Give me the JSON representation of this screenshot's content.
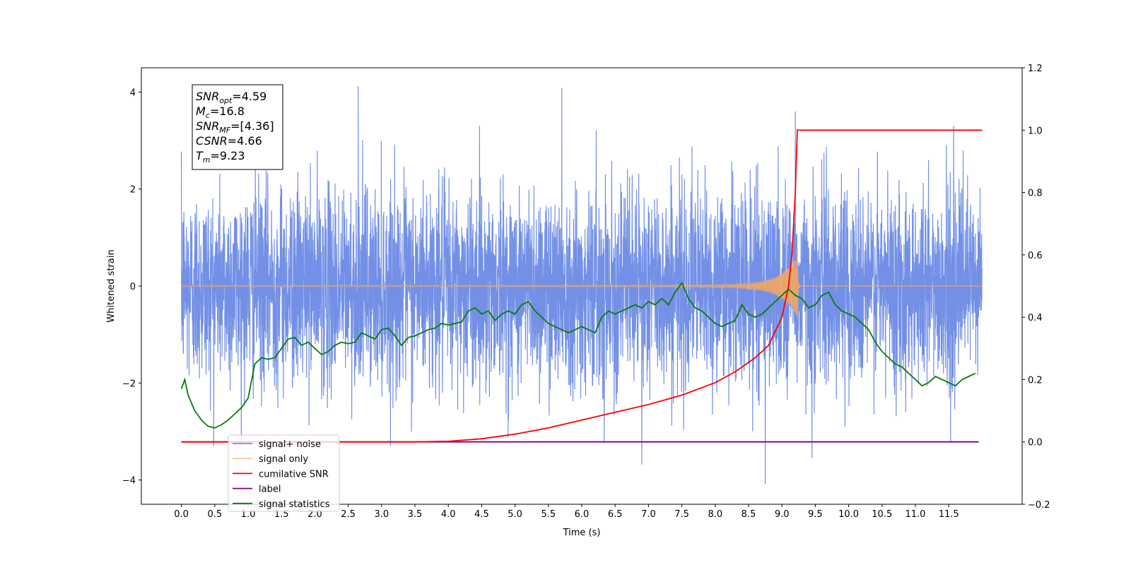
{
  "chart_data": {
    "type": "line",
    "xlabel": "Time (s)",
    "ylabel": "Whitened strain",
    "xlim": [
      -0.6,
      12.6
    ],
    "ylim": [
      -4.5,
      4.5
    ],
    "y2lim": [
      -0.2,
      1.2
    ],
    "xticks": [
      "0.0",
      "0.5",
      "1.0",
      "1.5",
      "2.0",
      "2.5",
      "3.0",
      "3.5",
      "4.0",
      "4.5",
      "5.0",
      "5.5",
      "6.0",
      "6.5",
      "7.0",
      "7.5",
      "8.0",
      "8.5",
      "9.0",
      "9.5",
      "10.0",
      "10.5",
      "11.0",
      "11.5"
    ],
    "yticks": [
      "−4",
      "−2",
      "0",
      "2",
      "4"
    ],
    "y2ticks": [
      "−0.2",
      "0.0",
      "0.2",
      "0.4",
      "0.6",
      "0.8",
      "1.0",
      "1.2"
    ],
    "grid": false,
    "legend_position": "lower-left",
    "colors": {
      "noise": "#7390e6",
      "signal": "#f2a960",
      "cumsnr": "#ff0000",
      "label": "#800080",
      "stats": "#0a7a0a"
    },
    "info_box": {
      "lines": [
        {
          "main": "SNR",
          "sub": "opt",
          "rest": "=4.59"
        },
        {
          "main": "M",
          "sub": "c",
          "rest": "=16.8"
        },
        {
          "main": "SNR",
          "sub": "MF",
          "rest": "=[4.36]"
        },
        {
          "main": "CSNR",
          "sub": "",
          "rest": "=4.66"
        },
        {
          "main": "T",
          "sub": "m",
          "rest": "=9.23"
        }
      ]
    },
    "legend": [
      {
        "label": "signal+ noise",
        "color": "#7390e6"
      },
      {
        "label": "signal only",
        "color": "#f2a960"
      },
      {
        "label": "cumilative SNR",
        "color": "#ff0000"
      },
      {
        "label": "label",
        "color": "#800080"
      },
      {
        "label": "signal statistics",
        "color": "#0a7a0a"
      }
    ],
    "series": [
      {
        "name": "signal+ noise",
        "axis": "left",
        "style": "noise",
        "x_range": [
          0.0,
          12.0
        ],
        "amplitude_sd": 1.0,
        "notable_peaks": [
          [
            2.65,
            4.12
          ],
          [
            5.7,
            4.08
          ],
          [
            6.9,
            3.8
          ],
          [
            9.2,
            3.6
          ],
          [
            8.75,
            -4.08
          ],
          [
            6.9,
            -3.68
          ],
          [
            9.45,
            -3.55
          ]
        ]
      },
      {
        "name": "signal only",
        "axis": "left",
        "style": "chirp",
        "x_range": [
          0.0,
          12.0
        ],
        "merger_time": 9.23,
        "peak_amplitude": 0.85
      },
      {
        "name": "cumilative SNR",
        "axis": "right",
        "x": [
          0.0,
          2.0,
          3.5,
          4.0,
          4.5,
          5.0,
          5.5,
          6.0,
          6.5,
          7.0,
          7.5,
          8.0,
          8.3,
          8.6,
          8.8,
          9.0,
          9.1,
          9.15,
          9.2,
          9.23,
          12.0
        ],
        "y": [
          0.0,
          0.0,
          0.0,
          0.002,
          0.01,
          0.025,
          0.045,
          0.07,
          0.095,
          0.12,
          0.15,
          0.19,
          0.225,
          0.27,
          0.31,
          0.4,
          0.5,
          0.6,
          0.8,
          1.0,
          1.0
        ]
      },
      {
        "name": "label",
        "axis": "right",
        "x": [
          0.0,
          11.95
        ],
        "y": [
          0.0,
          0.0
        ]
      },
      {
        "name": "signal statistics",
        "axis": "right",
        "x": [
          0.0,
          0.05,
          0.1,
          0.2,
          0.3,
          0.4,
          0.5,
          0.6,
          0.7,
          0.8,
          0.9,
          1.0,
          1.1,
          1.2,
          1.3,
          1.4,
          1.5,
          1.6,
          1.7,
          1.8,
          1.9,
          2.0,
          2.1,
          2.2,
          2.3,
          2.4,
          2.5,
          2.6,
          2.7,
          2.8,
          2.9,
          3.0,
          3.1,
          3.2,
          3.3,
          3.4,
          3.5,
          3.6,
          3.7,
          3.8,
          3.9,
          4.0,
          4.1,
          4.2,
          4.3,
          4.4,
          4.5,
          4.6,
          4.7,
          4.8,
          4.9,
          5.0,
          5.1,
          5.2,
          5.3,
          5.4,
          5.5,
          5.6,
          5.7,
          5.8,
          5.9,
          6.0,
          6.1,
          6.2,
          6.3,
          6.4,
          6.5,
          6.6,
          6.7,
          6.8,
          6.9,
          7.0,
          7.1,
          7.2,
          7.3,
          7.4,
          7.5,
          7.6,
          7.7,
          7.8,
          7.9,
          8.0,
          8.1,
          8.2,
          8.3,
          8.4,
          8.5,
          8.6,
          8.7,
          8.8,
          8.9,
          9.0,
          9.1,
          9.2,
          9.3,
          9.4,
          9.5,
          9.6,
          9.7,
          9.8,
          9.9,
          10.0,
          10.1,
          10.2,
          10.3,
          10.4,
          10.5,
          10.6,
          10.7,
          10.8,
          10.9,
          11.0,
          11.1,
          11.2,
          11.3,
          11.4,
          11.5,
          11.6,
          11.7,
          11.8,
          11.9
        ],
        "y": [
          0.17,
          0.2,
          0.15,
          0.1,
          0.07,
          0.05,
          0.045,
          0.055,
          0.07,
          0.09,
          0.11,
          0.14,
          0.25,
          0.27,
          0.265,
          0.27,
          0.3,
          0.33,
          0.335,
          0.31,
          0.32,
          0.3,
          0.28,
          0.29,
          0.31,
          0.32,
          0.315,
          0.32,
          0.35,
          0.34,
          0.33,
          0.36,
          0.365,
          0.34,
          0.31,
          0.335,
          0.34,
          0.35,
          0.36,
          0.365,
          0.38,
          0.375,
          0.38,
          0.385,
          0.42,
          0.43,
          0.41,
          0.42,
          0.39,
          0.41,
          0.42,
          0.41,
          0.44,
          0.45,
          0.42,
          0.4,
          0.38,
          0.37,
          0.36,
          0.35,
          0.36,
          0.37,
          0.36,
          0.35,
          0.4,
          0.42,
          0.41,
          0.42,
          0.43,
          0.44,
          0.43,
          0.45,
          0.44,
          0.46,
          0.44,
          0.48,
          0.51,
          0.46,
          0.43,
          0.42,
          0.4,
          0.38,
          0.37,
          0.38,
          0.39,
          0.44,
          0.41,
          0.4,
          0.41,
          0.43,
          0.45,
          0.47,
          0.49,
          0.47,
          0.46,
          0.43,
          0.44,
          0.47,
          0.48,
          0.44,
          0.42,
          0.41,
          0.4,
          0.38,
          0.36,
          0.32,
          0.29,
          0.27,
          0.25,
          0.24,
          0.22,
          0.2,
          0.18,
          0.19,
          0.21,
          0.2,
          0.19,
          0.18,
          0.2,
          0.21,
          0.22
        ]
      }
    ]
  }
}
